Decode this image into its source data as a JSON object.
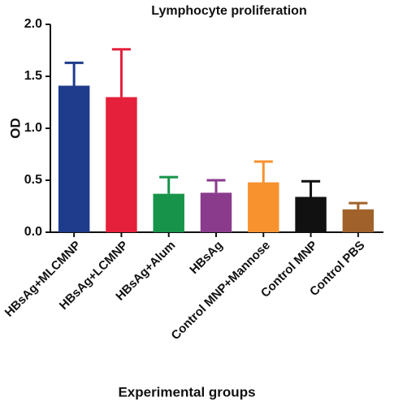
{
  "chart_data": {
    "type": "bar",
    "title": "Lymphocyte proliferation",
    "x_label": "Experimental groups",
    "y_label": "OD",
    "categories": [
      "HBsAg+MLCMNP",
      "HBsAg+LCMNP",
      "HBsAg+Alum",
      "HBsAg",
      "Control MNP+Mannose",
      "Control MNP",
      "Control PBS"
    ],
    "values": [
      1.41,
      1.3,
      0.37,
      0.38,
      0.48,
      0.34,
      0.22
    ],
    "errors": [
      0.22,
      0.46,
      0.16,
      0.12,
      0.2,
      0.15,
      0.06
    ],
    "colors": [
      "#1f3b8c",
      "#e5203a",
      "#17944a",
      "#8a3b8c",
      "#f7922e",
      "#111111",
      "#a0622a"
    ],
    "ylim": [
      0,
      2
    ],
    "yticks": [
      {
        "value": 0,
        "label": "0.0"
      },
      0.5,
      {
        "value": 1,
        "label": "1.0"
      },
      1.5,
      {
        "value": 2,
        "label": "2.0"
      }
    ],
    "grid": false
  }
}
